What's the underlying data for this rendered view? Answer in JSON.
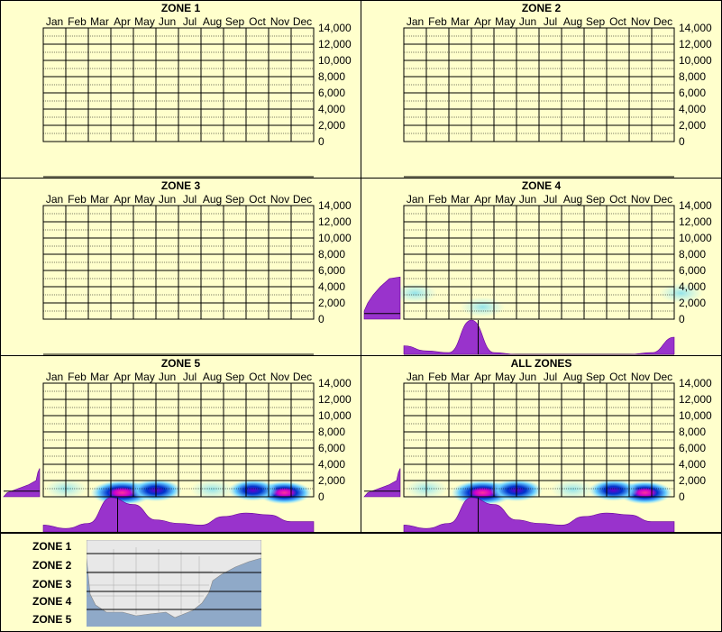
{
  "months": [
    "Jan",
    "Feb",
    "Mar",
    "Apr",
    "May",
    "Jun",
    "Jul",
    "Aug",
    "Sep",
    "Oct",
    "Nov",
    "Dec"
  ],
  "y_ticks": [
    "14,000",
    "12,000",
    "10,000",
    "8,000",
    "6,000",
    "4,000",
    "2,000",
    "0"
  ],
  "colors": {
    "background": "#ffffcc",
    "profile": "#9933cc",
    "heat_low": "#aaeeff",
    "heat_mid": "#0033cc",
    "heat_high": "#ff3399"
  },
  "chart_data": [
    {
      "type": "heatmap",
      "title": "ZONE 1",
      "x_categories": [
        "Jan",
        "Feb",
        "Mar",
        "Apr",
        "May",
        "Jun",
        "Jul",
        "Aug",
        "Sep",
        "Oct",
        "Nov",
        "Dec"
      ],
      "ylim": [
        0,
        14000
      ],
      "grid": true,
      "blobs": [],
      "month_profile": [],
      "elev_profile": []
    },
    {
      "type": "heatmap",
      "title": "ZONE 2",
      "x_categories": [
        "Jan",
        "Feb",
        "Mar",
        "Apr",
        "May",
        "Jun",
        "Jul",
        "Aug",
        "Sep",
        "Oct",
        "Nov",
        "Dec"
      ],
      "ylim": [
        0,
        14000
      ],
      "grid": true,
      "blobs": [],
      "month_profile": [],
      "elev_profile": []
    },
    {
      "type": "heatmap",
      "title": "ZONE 3",
      "x_categories": [
        "Jan",
        "Feb",
        "Mar",
        "Apr",
        "May",
        "Jun",
        "Jul",
        "Aug",
        "Sep",
        "Oct",
        "Nov",
        "Dec"
      ],
      "ylim": [
        0,
        14000
      ],
      "grid": true,
      "blobs": [],
      "month_profile": [],
      "elev_profile": []
    },
    {
      "type": "heatmap",
      "title": "ZONE 4",
      "x_categories": [
        "Jan",
        "Feb",
        "Mar",
        "Apr",
        "May",
        "Jun",
        "Jul",
        "Aug",
        "Sep",
        "Oct",
        "Nov",
        "Dec"
      ],
      "ylim": [
        0,
        14000
      ],
      "grid": true,
      "blobs": [
        {
          "month": 0.0,
          "elev": 3200,
          "int": 0.3
        },
        {
          "month": 3.0,
          "elev": 1500,
          "int": 0.35
        },
        {
          "month": 11.8,
          "elev": 3200,
          "int": 0.3
        }
      ],
      "month_profile": [
        [
          0,
          0.25
        ],
        [
          1,
          0.1
        ],
        [
          2,
          0.05
        ],
        [
          3,
          1.0
        ],
        [
          4,
          0.05
        ],
        [
          5,
          0
        ],
        [
          6,
          0
        ],
        [
          7,
          0
        ],
        [
          8,
          0
        ],
        [
          9,
          0
        ],
        [
          10,
          0
        ],
        [
          11,
          0.05
        ],
        [
          12,
          0.5
        ]
      ],
      "elev_profile": [
        [
          0,
          1.0
        ],
        [
          1000,
          1.0
        ],
        [
          2000,
          0.9
        ],
        [
          3000,
          0.75
        ],
        [
          4000,
          0.55
        ],
        [
          5000,
          0.3
        ],
        [
          5200,
          0
        ]
      ]
    },
    {
      "type": "heatmap",
      "title": "ZONE 5",
      "x_categories": [
        "Jan",
        "Feb",
        "Mar",
        "Apr",
        "May",
        "Jun",
        "Jul",
        "Aug",
        "Sep",
        "Oct",
        "Nov",
        "Dec"
      ],
      "ylim": [
        0,
        14000
      ],
      "grid": true,
      "blobs": [
        {
          "month": 3.0,
          "elev": 500,
          "int": 1.0
        },
        {
          "month": 4.5,
          "elev": 800,
          "int": 0.6
        },
        {
          "month": 10.2,
          "elev": 500,
          "int": 0.7
        },
        {
          "month": 8.8,
          "elev": 800,
          "int": 0.5
        },
        {
          "month": 0.5,
          "elev": 1000,
          "int": 0.25
        },
        {
          "month": 7.0,
          "elev": 900,
          "int": 0.3
        }
      ],
      "month_profile": [
        [
          0,
          0.2
        ],
        [
          1,
          0.1
        ],
        [
          2,
          0.25
        ],
        [
          3,
          1.0
        ],
        [
          4,
          0.8
        ],
        [
          5,
          0.35
        ],
        [
          6,
          0.25
        ],
        [
          7,
          0.2
        ],
        [
          8,
          0.45
        ],
        [
          9,
          0.55
        ],
        [
          10,
          0.5
        ],
        [
          11,
          0.3
        ],
        [
          12,
          0.3
        ]
      ],
      "elev_profile": [
        [
          0,
          1.0
        ],
        [
          500,
          0.9
        ],
        [
          1000,
          0.6
        ],
        [
          1500,
          0.3
        ],
        [
          2000,
          0.1
        ],
        [
          3000,
          0.05
        ],
        [
          3500,
          0
        ]
      ]
    },
    {
      "type": "heatmap",
      "title": "ALL ZONES",
      "x_categories": [
        "Jan",
        "Feb",
        "Mar",
        "Apr",
        "May",
        "Jun",
        "Jul",
        "Aug",
        "Sep",
        "Oct",
        "Nov",
        "Dec"
      ],
      "ylim": [
        0,
        14000
      ],
      "grid": true,
      "blobs": [
        {
          "month": 3.0,
          "elev": 500,
          "int": 1.0
        },
        {
          "month": 4.5,
          "elev": 800,
          "int": 0.6
        },
        {
          "month": 10.2,
          "elev": 500,
          "int": 0.7
        },
        {
          "month": 8.8,
          "elev": 800,
          "int": 0.5
        },
        {
          "month": 0.5,
          "elev": 1000,
          "int": 0.25
        },
        {
          "month": 7.0,
          "elev": 900,
          "int": 0.3
        }
      ],
      "month_profile": [
        [
          0,
          0.2
        ],
        [
          1,
          0.1
        ],
        [
          2,
          0.25
        ],
        [
          3,
          1.0
        ],
        [
          4,
          0.8
        ],
        [
          5,
          0.35
        ],
        [
          6,
          0.25
        ],
        [
          7,
          0.2
        ],
        [
          8,
          0.45
        ],
        [
          9,
          0.55
        ],
        [
          10,
          0.5
        ],
        [
          11,
          0.3
        ],
        [
          12,
          0.3
        ]
      ],
      "elev_profile": [
        [
          0,
          1.0
        ],
        [
          500,
          0.9
        ],
        [
          1000,
          0.6
        ],
        [
          1500,
          0.3
        ],
        [
          2000,
          0.1
        ],
        [
          3000,
          0.05
        ],
        [
          3500,
          0
        ]
      ]
    }
  ],
  "legend": {
    "zones": [
      "ZONE 1",
      "ZONE 2",
      "ZONE 3",
      "ZONE 4",
      "ZONE 5"
    ]
  }
}
